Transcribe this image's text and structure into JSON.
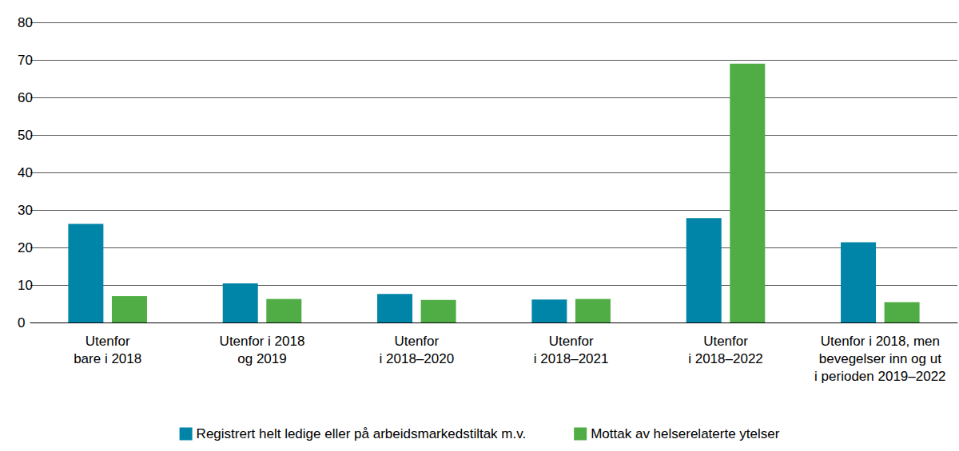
{
  "chart_data": {
    "type": "bar",
    "categories": [
      "Utenfor\nbare i 2018",
      "Utenfor i 2018\nog 2019",
      "Utenfor\ni 2018–2020",
      "Utenfor\ni 2018–2021",
      "Utenfor\ni 2018–2022",
      "Utenfor i 2018, men\nbevegelser inn og ut\ni perioden 2019–2022"
    ],
    "series": [
      {
        "name": "Registrert helt ledige eller på arbeidsmarkedstiltak m.v.",
        "color": "#0084a8",
        "values": [
          26.3,
          10.4,
          7.6,
          6.1,
          27.8,
          21.4
        ]
      },
      {
        "name": "Mottak av helserelaterte ytelser",
        "color": "#50ad46",
        "values": [
          7.0,
          6.3,
          6.0,
          6.3,
          69.0,
          5.4
        ]
      }
    ],
    "ylim": [
      0,
      80
    ],
    "yticks": [
      0,
      10,
      20,
      30,
      40,
      50,
      60,
      70,
      80
    ],
    "grid": true,
    "legend": "bottom"
  }
}
